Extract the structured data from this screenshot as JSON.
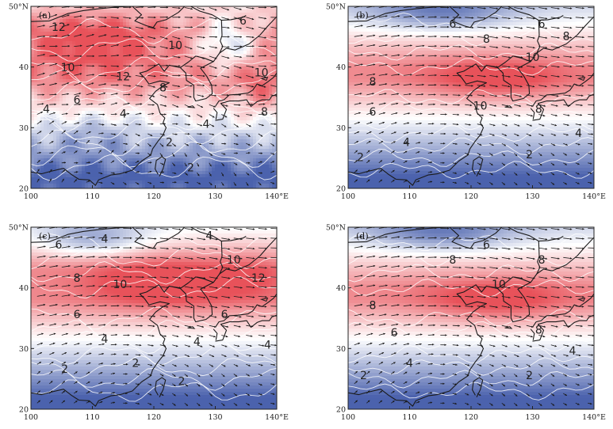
{
  "figure": {
    "axis": {
      "lon_range": [
        100,
        140
      ],
      "lat_range": [
        20,
        50
      ],
      "x_ticks": [
        "100",
        "110",
        "120",
        "130",
        "140°E"
      ],
      "y_ticks": [
        "20",
        "30",
        "40",
        "50°N"
      ]
    },
    "colors": {
      "low": "#4b62ad",
      "mid": "#ffffff",
      "high": "#e8525a",
      "contour": "#ffffff",
      "coast": "#1a1a1a",
      "vector": "#1a1a1a"
    },
    "panels": [
      {
        "label": "(a)",
        "contour_labels": [
          {
            "text": "12",
            "lon": 104.5,
            "lat": 46.5
          },
          {
            "text": "6",
            "lon": 134.5,
            "lat": 47.5
          },
          {
            "text": "10",
            "lon": 123.5,
            "lat": 43.5
          },
          {
            "text": "10",
            "lon": 106,
            "lat": 39.8
          },
          {
            "text": "12",
            "lon": 115,
            "lat": 38.3
          },
          {
            "text": "8",
            "lon": 121.5,
            "lat": 36.5
          },
          {
            "text": "10",
            "lon": 137.5,
            "lat": 39
          },
          {
            "text": "8",
            "lon": 138,
            "lat": 32.5
          },
          {
            "text": "6",
            "lon": 107.5,
            "lat": 34.5
          },
          {
            "text": "4",
            "lon": 102.5,
            "lat": 33
          },
          {
            "text": "4",
            "lon": 115,
            "lat": 32.2
          },
          {
            "text": "4",
            "lon": 128.5,
            "lat": 30.5
          },
          {
            "text": "2",
            "lon": 122.5,
            "lat": 27.5
          },
          {
            "text": "2",
            "lon": 126,
            "lat": 23.3
          }
        ]
      },
      {
        "label": "(b)",
        "contour_labels": [
          {
            "text": "6",
            "lon": 117,
            "lat": 47
          },
          {
            "text": "6",
            "lon": 131.5,
            "lat": 47
          },
          {
            "text": "8",
            "lon": 122.5,
            "lat": 44.5
          },
          {
            "text": "8",
            "lon": 135.5,
            "lat": 45
          },
          {
            "text": "10",
            "lon": 130,
            "lat": 41.5
          },
          {
            "text": "8",
            "lon": 104,
            "lat": 37.5
          },
          {
            "text": "10",
            "lon": 121.5,
            "lat": 33.5
          },
          {
            "text": "8",
            "lon": 131,
            "lat": 33
          },
          {
            "text": "6",
            "lon": 104,
            "lat": 32.5
          },
          {
            "text": "4",
            "lon": 109.5,
            "lat": 27.5
          },
          {
            "text": "4",
            "lon": 137.5,
            "lat": 29
          },
          {
            "text": "2",
            "lon": 102,
            "lat": 25
          },
          {
            "text": "2",
            "lon": 129.5,
            "lat": 25.5
          }
        ]
      },
      {
        "label": "(c)",
        "contour_labels": [
          {
            "text": "6",
            "lon": 104.5,
            "lat": 47
          },
          {
            "text": "4",
            "lon": 112,
            "lat": 48
          },
          {
            "text": "4",
            "lon": 129,
            "lat": 48.5
          },
          {
            "text": "10",
            "lon": 133,
            "lat": 44.5
          },
          {
            "text": "8",
            "lon": 107.5,
            "lat": 41.5
          },
          {
            "text": "10",
            "lon": 114.5,
            "lat": 40.5
          },
          {
            "text": "12",
            "lon": 137,
            "lat": 41.5
          },
          {
            "text": "6",
            "lon": 107.5,
            "lat": 35.5
          },
          {
            "text": "6",
            "lon": 131.5,
            "lat": 35.5
          },
          {
            "text": "4",
            "lon": 112,
            "lat": 31.5
          },
          {
            "text": "4",
            "lon": 127,
            "lat": 31
          },
          {
            "text": "4",
            "lon": 138.5,
            "lat": 30.5
          },
          {
            "text": "2",
            "lon": 105.5,
            "lat": 26.5
          },
          {
            "text": "2",
            "lon": 117,
            "lat": 27.5
          },
          {
            "text": "2",
            "lon": 124.5,
            "lat": 24.5
          }
        ]
      },
      {
        "label": "(d)",
        "contour_labels": [
          {
            "text": "6",
            "lon": 122.5,
            "lat": 47
          },
          {
            "text": "8",
            "lon": 117,
            "lat": 44.5
          },
          {
            "text": "8",
            "lon": 131.5,
            "lat": 44.5
          },
          {
            "text": "10",
            "lon": 124.5,
            "lat": 40.5
          },
          {
            "text": "8",
            "lon": 104,
            "lat": 37
          },
          {
            "text": "8",
            "lon": 131,
            "lat": 33
          },
          {
            "text": "6",
            "lon": 107.5,
            "lat": 32.5
          },
          {
            "text": "4",
            "lon": 110,
            "lat": 27.5
          },
          {
            "text": "4",
            "lon": 136.5,
            "lat": 29.5
          },
          {
            "text": "2",
            "lon": 102.5,
            "lat": 25.5
          },
          {
            "text": "2",
            "lon": 129.5,
            "lat": 25.5
          }
        ]
      }
    ]
  }
}
